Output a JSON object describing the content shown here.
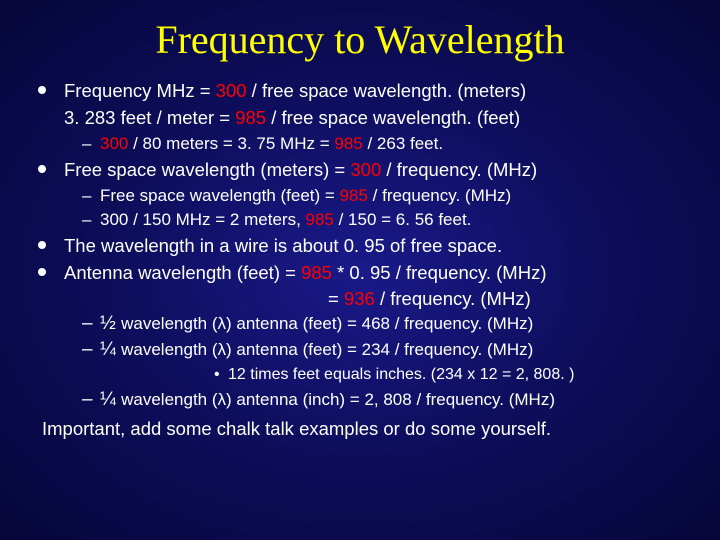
{
  "colors": {
    "background_center": "#1a1a8a",
    "background_edge": "#06063a",
    "title": "#ffff00",
    "text": "#ffffff",
    "highlight": "#ff0000"
  },
  "title": "Frequency to Wavelength",
  "bullets": [
    {
      "level": 1,
      "fragments": [
        {
          "t": "Frequency MHz = "
        },
        {
          "t": "300",
          "red": true
        },
        {
          "t": " / free space wavelength. (meters)"
        }
      ]
    },
    {
      "level": 1,
      "no_bullet": true,
      "fragments": [
        {
          "t": "3. 283 feet / meter = "
        },
        {
          "t": "985",
          "red": true
        },
        {
          "t": " / free space wavelength. (feet)"
        }
      ]
    },
    {
      "level": 2,
      "fragments": [
        {
          "t": "300",
          "red": true
        },
        {
          "t": " / 80  meters = 3. 75 MHz = "
        },
        {
          "t": "985",
          "red": true
        },
        {
          "t": " / 263 feet."
        }
      ]
    },
    {
      "level": 1,
      "fragments": [
        {
          "t": "Free space wavelength (meters) = "
        },
        {
          "t": "300",
          "red": true
        },
        {
          "t": " / frequency. (MHz)"
        }
      ]
    },
    {
      "level": 2,
      "fragments": [
        {
          "t": "Free space wavelength (feet)     = "
        },
        {
          "t": "985",
          "red": true
        },
        {
          "t": " / frequency. (MHz)"
        }
      ]
    },
    {
      "level": 2,
      "fragments": [
        {
          "t": "300 / 150 MHz = 2 meters,   "
        },
        {
          "t": "985",
          "red": true
        },
        {
          "t": " / 150 = 6. 56 feet."
        }
      ]
    },
    {
      "level": 1,
      "fragments": [
        {
          "t": "The wavelength in a wire is about 0. 95 of free space."
        }
      ]
    },
    {
      "level": 1,
      "fragments": [
        {
          "t": "Antenna wavelength (feet) = "
        },
        {
          "t": "985",
          "red": true
        },
        {
          "t": " * 0. 95 / frequency. (MHz)"
        }
      ]
    },
    {
      "level": "eq",
      "fragments": [
        {
          "t": "= "
        },
        {
          "t": "936",
          "red": true
        },
        {
          "t": " / frequency. (MHz)"
        }
      ]
    },
    {
      "level": "2b",
      "fragments": [
        {
          "t": "½ ",
          "frac": true
        },
        {
          "t": "wavelength (λ) antenna (feet) = 468 / frequency. (MHz)"
        }
      ]
    },
    {
      "level": "2b",
      "fragments": [
        {
          "t": "¼ ",
          "frac": true
        },
        {
          "t": "wavelength (λ) antenna (feet) = 234 / frequency. (MHz)"
        }
      ]
    },
    {
      "level": 3,
      "fragments": [
        {
          "t": "12 times feet equals inches. (234 x 12 = 2, 808. )"
        }
      ]
    },
    {
      "level": "2b",
      "fragments": [
        {
          "t": "¼ ",
          "frac": true
        },
        {
          "t": "wavelength (λ) antenna (inch) = 2, 808 / frequency. (MHz)"
        }
      ]
    }
  ],
  "important": "Important, add some chalk talk examples or do some yourself."
}
